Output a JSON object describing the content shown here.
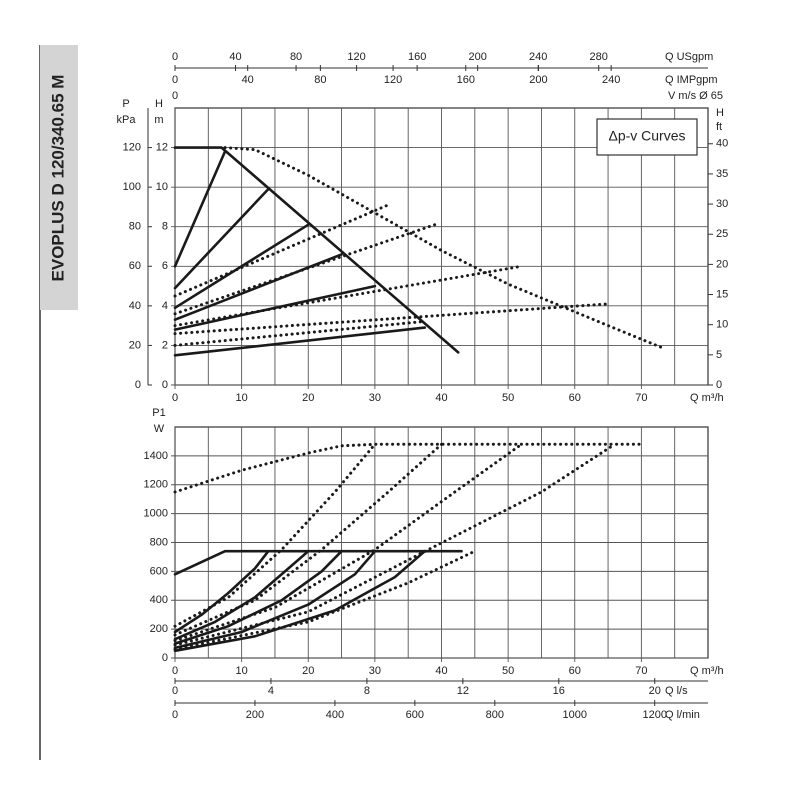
{
  "header": {
    "title": "EVOPLUS D 120/340.65 M"
  },
  "chart_data": [
    {
      "type": "line",
      "legend": "Δp-v Curves",
      "x_label": "Q m³/h",
      "xlim": [
        0,
        80
      ],
      "xticks": [
        0,
        10,
        20,
        30,
        40,
        50,
        60,
        70
      ],
      "minor_xticks": [
        5,
        15,
        25,
        35,
        45,
        55,
        65,
        75
      ],
      "ylim": [
        0,
        14
      ],
      "yticks": [
        0,
        2,
        4,
        6,
        8,
        10,
        12
      ],
      "y_label": "H",
      "y_unit": "m",
      "y2lim": [
        0,
        45.93
      ],
      "y2ticks": [
        0,
        5,
        10,
        15,
        20,
        25,
        30,
        35,
        40
      ],
      "y2_label": "H",
      "y2_unit": "ft",
      "kpa_axis": {
        "label": "P",
        "unit": "kPa",
        "lim": [
          0,
          140
        ],
        "ticks": [
          0,
          20,
          40,
          60,
          80,
          100,
          120
        ]
      },
      "top_axes": [
        {
          "label": "Q USgpm",
          "lim": [
            0,
            352.2
          ],
          "ticks": [
            0,
            40,
            80,
            120,
            160,
            200,
            240,
            280
          ]
        },
        {
          "label": "Q IMPgpm",
          "lim": [
            0,
            293.3
          ],
          "ticks": [
            0,
            40,
            80,
            120,
            160,
            200,
            240
          ]
        }
      ],
      "velocity_label": "V m/s Ø 65",
      "velocity_ticks": [
        0
      ],
      "series": [
        {
          "style": "solid",
          "color": "#1a1a1a",
          "x": [
            0,
            7,
            42.5
          ],
          "values": [
            12,
            12,
            1.65
          ]
        },
        {
          "style": "solid",
          "color": "#1a1a1a",
          "x": [
            0,
            7.5
          ],
          "values": [
            6,
            11.8
          ]
        },
        {
          "style": "solid",
          "color": "#1a1a1a",
          "x": [
            0,
            14
          ],
          "values": [
            4.9,
            9.9
          ]
        },
        {
          "style": "solid",
          "color": "#1a1a1a",
          "x": [
            0,
            20
          ],
          "values": [
            3.9,
            8.1
          ]
        },
        {
          "style": "solid",
          "color": "#1a1a1a",
          "x": [
            0,
            25
          ],
          "values": [
            3.3,
            6.6
          ]
        },
        {
          "style": "solid",
          "color": "#1a1a1a",
          "x": [
            0,
            30
          ],
          "values": [
            2.8,
            5.0
          ]
        },
        {
          "style": "solid",
          "color": "#1a1a1a",
          "x": [
            0,
            37.5
          ],
          "values": [
            1.5,
            2.9
          ]
        },
        {
          "style": "dotted",
          "color": "#1a1a1a",
          "x": [
            7.5,
            12,
            20,
            30,
            40,
            50,
            60,
            65,
            73
          ],
          "values": [
            12,
            11.9,
            10.6,
            8.7,
            6.8,
            5.1,
            3.7,
            3.0,
            1.9
          ]
        },
        {
          "style": "dotted",
          "color": "#1a1a1a",
          "x": [
            0,
            32
          ],
          "values": [
            4.5,
            9.1
          ]
        },
        {
          "style": "dotted",
          "color": "#1a1a1a",
          "x": [
            0,
            39
          ],
          "values": [
            3.6,
            8.1
          ]
        },
        {
          "style": "dotted",
          "color": "#1a1a1a",
          "x": [
            0,
            52
          ],
          "values": [
            3.0,
            6.0
          ]
        },
        {
          "style": "dotted",
          "color": "#1a1a1a",
          "x": [
            0,
            65
          ],
          "values": [
            2.6,
            4.1
          ]
        },
        {
          "style": "dotted",
          "color": "#1a1a1a",
          "x": [
            0,
            37
          ],
          "values": [
            2.0,
            3.2
          ]
        }
      ]
    },
    {
      "type": "line",
      "x_label": "Q m³/h",
      "xlim": [
        0,
        80
      ],
      "xticks": [
        0,
        10,
        20,
        30,
        40,
        50,
        60,
        70
      ],
      "minor_xticks": [
        5,
        15,
        25,
        35,
        45,
        55,
        65,
        75
      ],
      "ylim": [
        0,
        1600
      ],
      "yticks": [
        0,
        200,
        400,
        600,
        800,
        1000,
        1200,
        1400
      ],
      "y_label": "P1",
      "y_unit": "W",
      "bottom_axes": [
        {
          "label": "Q l/s",
          "lim": [
            0,
            22.22
          ],
          "ticks": [
            0,
            4,
            8,
            12,
            16,
            20
          ]
        },
        {
          "label": "Q l/min",
          "lim": [
            0,
            1333.3
          ],
          "ticks": [
            0,
            200,
            400,
            600,
            800,
            1000,
            1200
          ]
        }
      ],
      "series": [
        {
          "style": "solid",
          "color": "#1a1a1a",
          "x": [
            0,
            7.5,
            43
          ],
          "values": [
            580,
            740,
            740
          ]
        },
        {
          "style": "solid",
          "color": "#1a1a1a",
          "x": [
            0,
            4,
            8,
            12,
            14
          ],
          "values": [
            180,
            300,
            450,
            620,
            740
          ]
        },
        {
          "style": "solid",
          "color": "#1a1a1a",
          "x": [
            0,
            6,
            12,
            17,
            20
          ],
          "values": [
            130,
            250,
            420,
            620,
            740
          ]
        },
        {
          "style": "solid",
          "color": "#1a1a1a",
          "x": [
            0,
            8,
            16,
            22,
            25
          ],
          "values": [
            100,
            220,
            400,
            600,
            740
          ]
        },
        {
          "style": "solid",
          "color": "#1a1a1a",
          "x": [
            0,
            10,
            20,
            27,
            30
          ],
          "values": [
            70,
            180,
            370,
            580,
            740
          ]
        },
        {
          "style": "solid",
          "color": "#1a1a1a",
          "x": [
            0,
            12,
            24,
            33,
            37.5
          ],
          "values": [
            50,
            150,
            330,
            560,
            740
          ]
        },
        {
          "style": "dotted",
          "color": "#1a1a1a",
          "x": [
            0,
            10,
            20,
            25,
            30,
            70
          ],
          "values": [
            1150,
            1300,
            1420,
            1470,
            1480,
            1480
          ]
        },
        {
          "style": "dotted",
          "color": "#1a1a1a",
          "x": [
            0,
            8,
            16,
            24,
            30
          ],
          "values": [
            220,
            420,
            750,
            1150,
            1480
          ]
        },
        {
          "style": "dotted",
          "color": "#1a1a1a",
          "x": [
            0,
            12,
            22,
            32,
            40
          ],
          "values": [
            160,
            400,
            750,
            1150,
            1480
          ]
        },
        {
          "style": "dotted",
          "color": "#1a1a1a",
          "x": [
            0,
            15,
            30,
            42,
            52
          ],
          "values": [
            120,
            350,
            750,
            1150,
            1480
          ]
        },
        {
          "style": "dotted",
          "color": "#1a1a1a",
          "x": [
            0,
            20,
            38,
            55,
            66
          ],
          "values": [
            90,
            320,
            750,
            1150,
            1480
          ]
        },
        {
          "style": "dotted",
          "color": "#1a1a1a",
          "x": [
            0,
            20,
            35,
            45
          ],
          "values": [
            60,
            250,
            520,
            740
          ]
        }
      ]
    }
  ]
}
